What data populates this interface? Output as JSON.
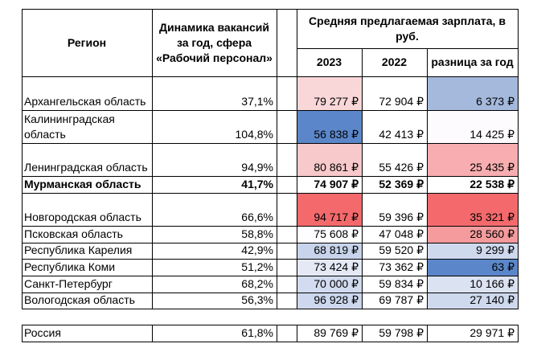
{
  "header": {
    "region": "Регион",
    "dynamics": "Динамика вакансий за год, сфера «Рабочий персонал»",
    "salary_group": "Средняя предлагаемая зарплата, в руб.",
    "y2023": "2023",
    "y2022": "2022",
    "diff": "разница за год"
  },
  "rows": [
    {
      "region": "Архангельская область",
      "dyn": "37,1%",
      "s2023": "79 277 ₽",
      "s2022": "72 904 ₽",
      "diff": "6 373 ₽",
      "c2023": "#f9d7d8",
      "cdiff": "#a4b9dc",
      "bold": false
    },
    {
      "region": "Калининградская область",
      "dyn": "104,8%",
      "s2023": "56 838 ₽",
      "s2022": "42 413 ₽",
      "diff": "14 425 ₽",
      "c2023": "#5b87ca",
      "cdiff": "#fdfbfd",
      "bold": false
    },
    {
      "region": "Ленинградская область",
      "dyn": "94,9%",
      "s2023": "80 861 ₽",
      "s2022": "55 426 ₽",
      "diff": "25 435 ₽",
      "c2023": "#f8c9ca",
      "cdiff": "#f8aeb0",
      "bold": false
    },
    {
      "region": "Мурманская область",
      "dyn": "41,7%",
      "s2023": "74 907 ₽",
      "s2022": "52 369 ₽",
      "diff": "22 538 ₽",
      "c2023": "#ffffff",
      "cdiff": "#ffffff",
      "bold": true
    },
    {
      "region": "Новгородская область",
      "dyn": "66,6%",
      "s2023": "94 717 ₽",
      "s2022": "59 396 ₽",
      "diff": "35 321 ₽",
      "c2023": "#f46a6c",
      "cdiff": "#f46a6c",
      "bold": false
    },
    {
      "region": "Псковская область",
      "dyn": "58,8%",
      "s2023": "75 608 ₽",
      "s2022": "47 048 ₽",
      "diff": "28 560 ₽",
      "c2023": "#fdfcfe",
      "cdiff": "#f59b9d",
      "bold": false
    },
    {
      "region": "Республика Карелия",
      "dyn": "42,9%",
      "s2023": "68 819 ₽",
      "s2022": "59 520 ₽",
      "diff": "9 299 ₽",
      "c2023": "#c8d4ec",
      "cdiff": "#cfd9ee",
      "bold": false
    },
    {
      "region": "Республика Коми",
      "dyn": "51,2%",
      "s2023": "73 424 ₽",
      "s2022": "73 362 ₽",
      "diff": "63 ₽",
      "c2023": "#e4e9f5",
      "cdiff": "#5b87ca",
      "bold": false
    },
    {
      "region": "Санкт-Петербург",
      "dyn": "68,2%",
      "s2023": "70 000 ₽",
      "s2022": "59 834 ₽",
      "diff": "10 166 ₽",
      "c2023": "#d2dbef",
      "cdiff": "#dbe2f1",
      "bold": false
    },
    {
      "region": "Вологодская область",
      "dyn": "56,3%",
      "s2023": "96 928 ₽",
      "s2022": "69 787 ₽",
      "diff": "27 140 ₽",
      "c2023": "#cdd8ee",
      "cdiff": "#cfd9ee",
      "bold": false
    }
  ],
  "total": {
    "region": "Россия",
    "dyn": "61,8%",
    "s2023": "89 769 ₽",
    "s2022": "59 798 ₽",
    "diff": "29 971 ₽"
  }
}
